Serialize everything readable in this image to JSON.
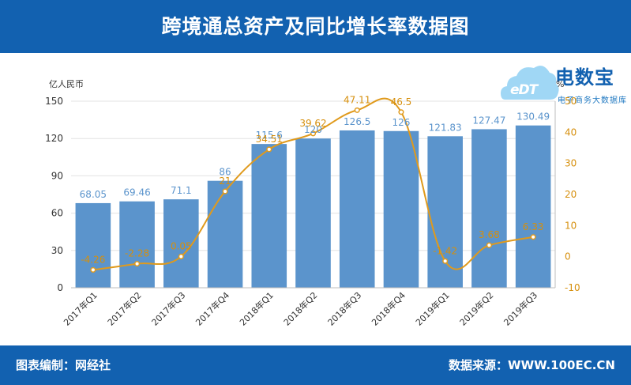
{
  "title": "跨境通总资产及同比增长率数据图",
  "footer": {
    "left": "图表编制：网经社",
    "right": "数据来源：WWW.100EC.CN"
  },
  "logo": {
    "name": "电数宝",
    "edt": "eDT",
    "sub": "电子商务大数据库"
  },
  "colors": {
    "header_bg": "#1261b0",
    "bar": "#5b94cc",
    "line": "#e09a1c",
    "bar_label": "#5b94cc",
    "line_label": "#d68f0c"
  },
  "chart_data": {
    "type": "bar",
    "categories": [
      "2017年Q1",
      "2017年Q2",
      "2017年Q3",
      "2017年Q4",
      "2018年Q1",
      "2018年Q2",
      "2018年Q3",
      "2018年Q4",
      "2019年Q1",
      "2019年Q2",
      "2019年Q3"
    ],
    "series": [
      {
        "name": "",
        "type": "bar",
        "axis": "left",
        "values": [
          68.05,
          69.46,
          71.1,
          86,
          115.6,
          120,
          126.5,
          126,
          121.83,
          127.47,
          130.49
        ],
        "labels": [
          "68.05",
          "69.46",
          "71.1",
          "86",
          "115.6",
          "120",
          "126.5",
          "126",
          "121.83",
          "127.47",
          "130.49"
        ]
      },
      {
        "name": "",
        "type": "line",
        "axis": "right",
        "values": [
          -4.26,
          -2.28,
          0.05,
          21,
          34.51,
          39.62,
          47.11,
          46.5,
          -1.42,
          3.68,
          6.33
        ],
        "labels": [
          "-4.26",
          "-2.28",
          "0.05",
          "21",
          "34.51",
          "39.62",
          "47.11",
          "46.5",
          "-1.42",
          "3.68",
          "6.33"
        ]
      }
    ],
    "ylabel_left": "亿人民币",
    "ylabel_right": "%",
    "ylim_left": [
      0,
      150
    ],
    "yticks_left": [
      0,
      30,
      60,
      90,
      120,
      150
    ],
    "ylim_right": [
      -10,
      50
    ],
    "yticks_right": [
      -10,
      0,
      10,
      20,
      30,
      40,
      50
    ],
    "grid": true,
    "legend": "none"
  }
}
